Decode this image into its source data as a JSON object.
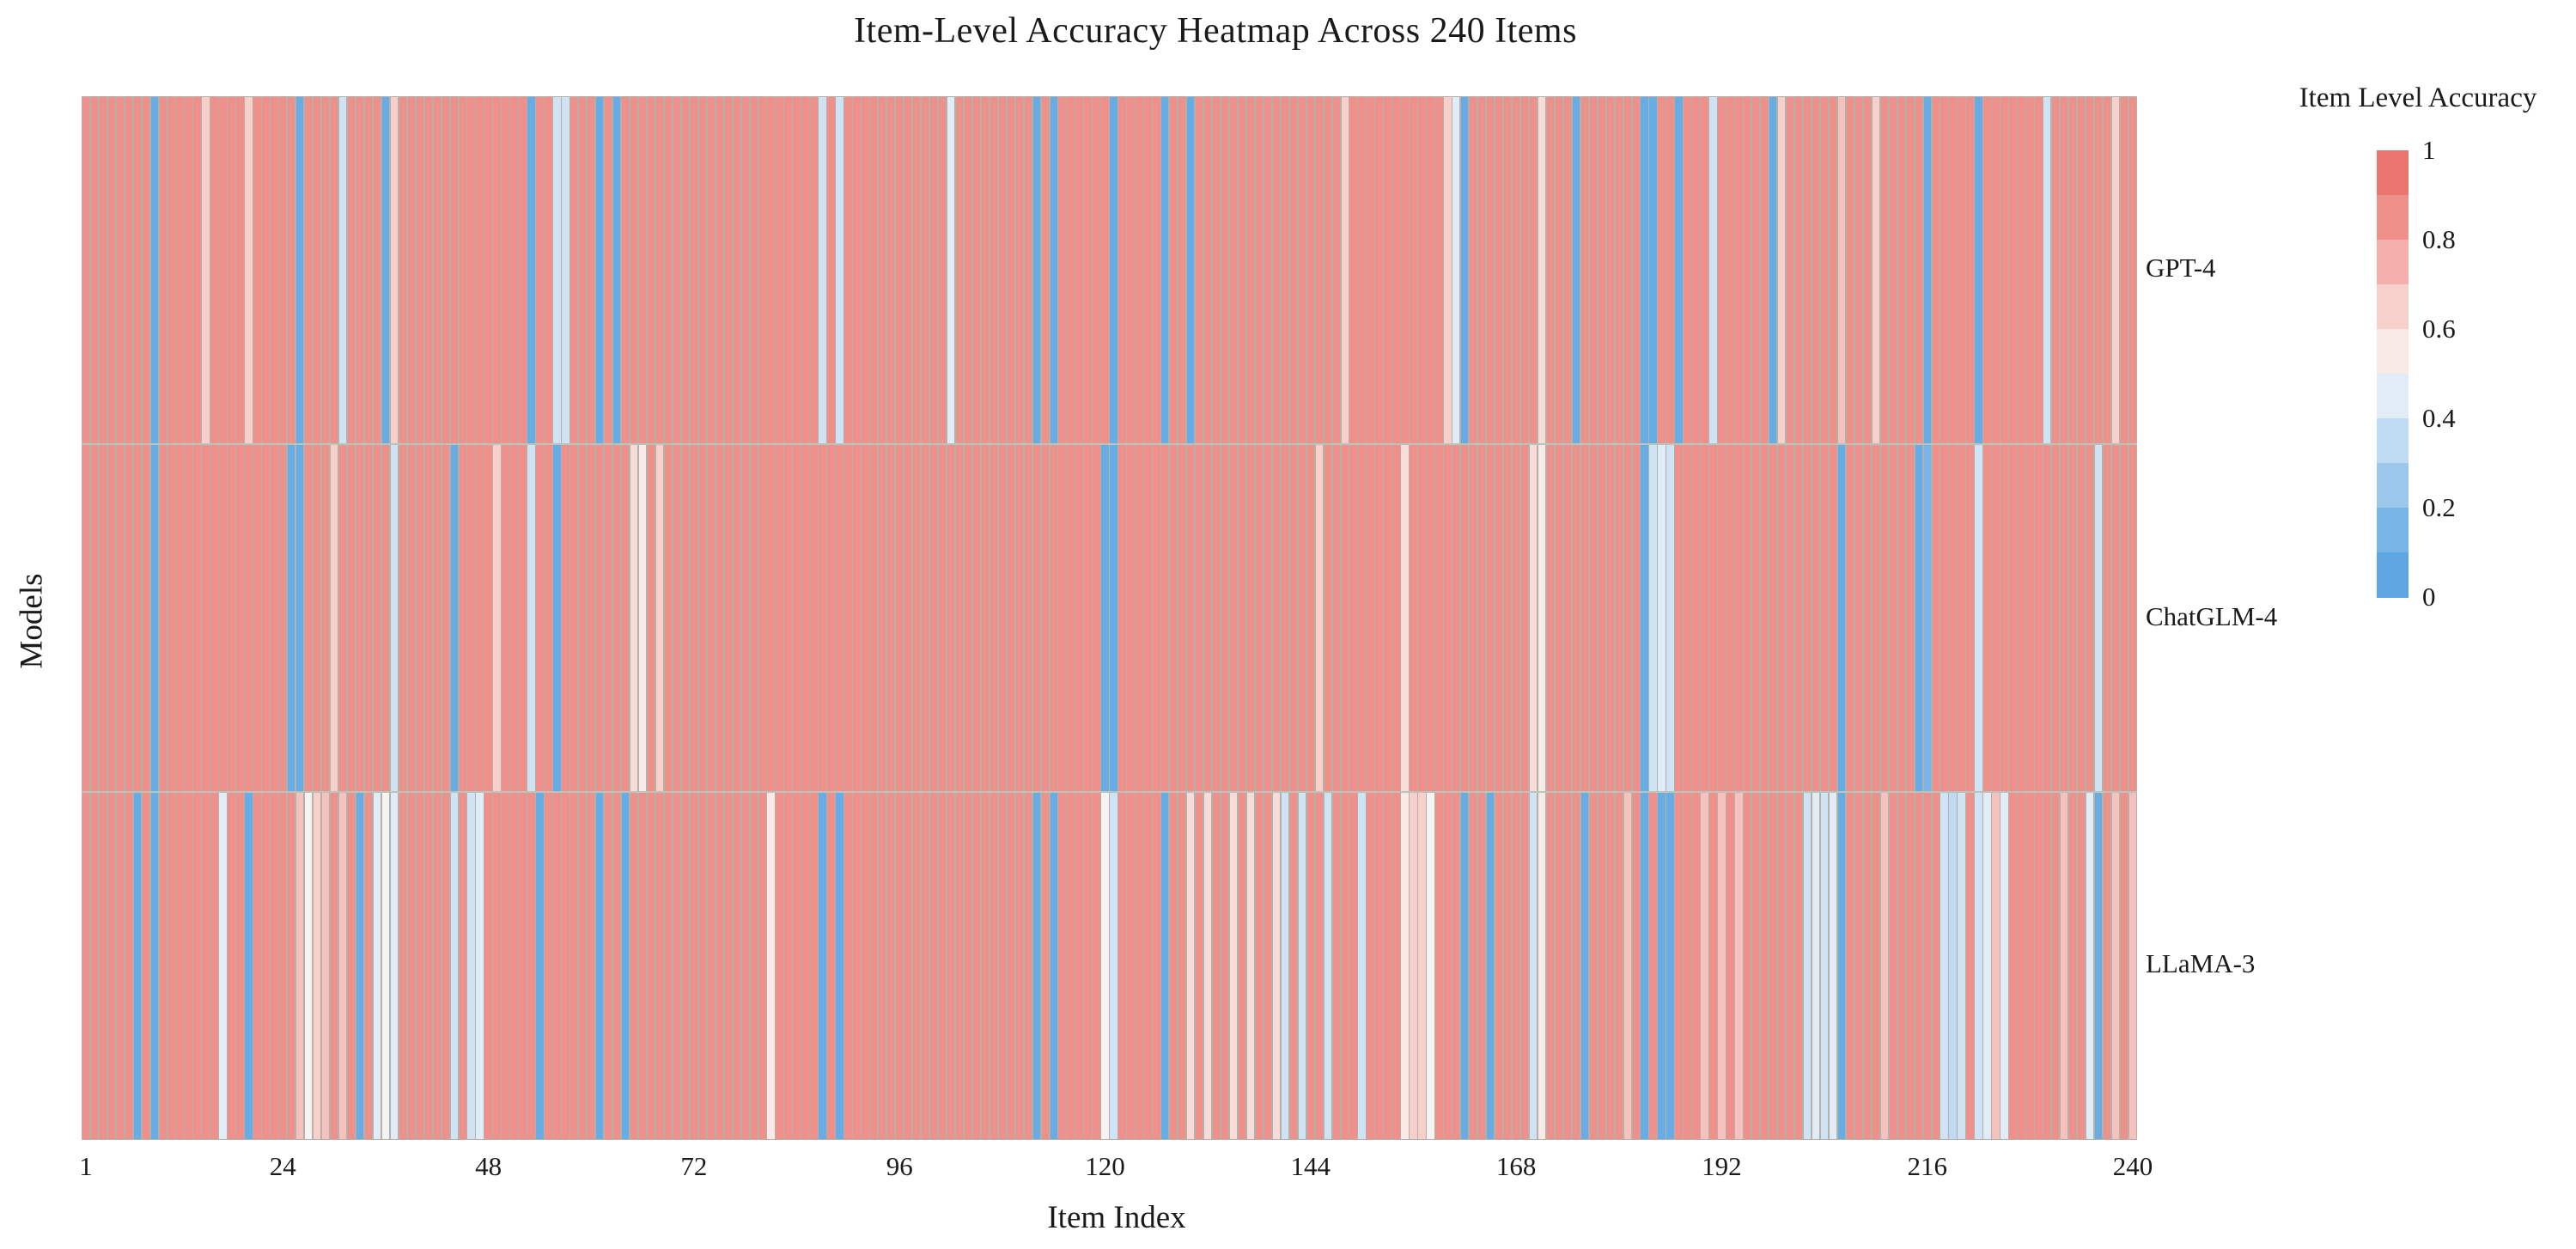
{
  "title": "Item-Level Accuracy Heatmap Across 240 Items",
  "axis": {
    "x_label": "Item Index",
    "y_label": "Models",
    "x_ticks": [
      1,
      24,
      48,
      72,
      96,
      120,
      144,
      168,
      192,
      216,
      240
    ]
  },
  "legend": {
    "title": "Item Level Accuracy",
    "tick_labels": [
      "1",
      "0.8",
      "0.6",
      "0.4",
      "0.2",
      "0"
    ],
    "n_bins": 10
  },
  "colors": {
    "grid_gap": "#b2b2aa",
    "row_separator": "#b9c4ba",
    "colormap_stops": [
      [
        0.0,
        "#54a1e1"
      ],
      [
        0.1,
        "#68ace5"
      ],
      [
        0.2,
        "#8abde9"
      ],
      [
        0.3,
        "#aed2ef"
      ],
      [
        0.4,
        "#cfe3f4"
      ],
      [
        0.47,
        "#e8f0f8"
      ],
      [
        0.5,
        "#f5f4f3"
      ],
      [
        0.55,
        "#f9e9e7"
      ],
      [
        0.6,
        "#f8dcd9"
      ],
      [
        0.7,
        "#f5c2bd"
      ],
      [
        0.8,
        "#f09c97"
      ],
      [
        0.9,
        "#ed837e"
      ],
      [
        1.0,
        "#e5685f"
      ]
    ]
  },
  "chart_data": {
    "type": "heatmap",
    "title": "Item-Level Accuracy Heatmap Across 240 Items",
    "xlabel": "Item Index",
    "ylabel": "Models",
    "x_range": [
      1,
      240
    ],
    "n_items": 240,
    "value_range": [
      0,
      1
    ],
    "colormap": "diverging blue(0) to white(0.5) to red(1)",
    "legend_position": "right",
    "rows": [
      "GPT-4",
      "ChatGLM-4",
      "LLaMA-3"
    ],
    "encoding": "per-series: 240 items, value = base except listed 1-based overrides",
    "series": [
      {
        "name": "GPT-4",
        "base": 0.85,
        "overrides": {
          "9": 0.1,
          "15": 0.65,
          "20": 0.65,
          "26": 0.1,
          "31": 0.4,
          "36": 0.1,
          "37": 0.65,
          "53": 0.1,
          "56": 0.4,
          "57": 0.4,
          "61": 0.1,
          "63": 0.1,
          "87": 0.4,
          "89": 0.4,
          "102": 0.45,
          "112": 0.1,
          "114": 0.1,
          "121": 0.1,
          "127": 0.1,
          "130": 0.1,
          "148": 0.65,
          "160": 0.65,
          "161": 0.45,
          "162": 0.1,
          "171": 0.6,
          "175": 0.1,
          "183": 0.1,
          "184": 0.1,
          "187": 0.1,
          "191": 0.4,
          "198": 0.1,
          "199": 0.65,
          "206": 0.7,
          "210": 0.65,
          "216": 0.1,
          "222": 0.1,
          "230": 0.4,
          "238": 0.65
        }
      },
      {
        "name": "ChatGLM-4",
        "base": 0.85,
        "overrides": {
          "9": 0.1,
          "25": 0.1,
          "26": 0.1,
          "30": 0.65,
          "37": 0.4,
          "44": 0.1,
          "49": 0.65,
          "53": 0.4,
          "56": 0.1,
          "65": 0.6,
          "66": 0.55,
          "68": 0.65,
          "120": 0.1,
          "121": 0.1,
          "145": 0.65,
          "155": 0.6,
          "170": 0.6,
          "171": 0.55,
          "183": 0.1,
          "184": 0.4,
          "185": 0.45,
          "186": 0.4,
          "206": 0.1,
          "215": 0.1,
          "216": 0.15,
          "222": 0.4,
          "236": 0.4
        }
      },
      {
        "name": "LLaMA-3",
        "base": 0.85,
        "overrides": {
          "7": 0.1,
          "9": 0.1,
          "17": 0.45,
          "20": 0.1,
          "26": 0.7,
          "27": 0.5,
          "28": 0.65,
          "29": 0.7,
          "31": 0.7,
          "33": 0.1,
          "35": 0.45,
          "36": 0.5,
          "37": 0.45,
          "44": 0.4,
          "46": 0.4,
          "47": 0.45,
          "54": 0.1,
          "61": 0.1,
          "64": 0.1,
          "81": 0.55,
          "87": 0.1,
          "89": 0.1,
          "112": 0.1,
          "114": 0.1,
          "120": 0.5,
          "121": 0.4,
          "127": 0.1,
          "130": 0.6,
          "132": 0.6,
          "135": 0.6,
          "137": 0.6,
          "140": 0.6,
          "141": 0.4,
          "143": 0.4,
          "146": 0.4,
          "150": 0.4,
          "155": 0.55,
          "156": 0.65,
          "157": 0.65,
          "158": 0.5,
          "162": 0.1,
          "165": 0.1,
          "170": 0.4,
          "171": 0.55,
          "176": 0.1,
          "181": 0.7,
          "183": 0.1,
          "185": 0.1,
          "186": 0.1,
          "190": 0.7,
          "192": 0.7,
          "194": 0.7,
          "202": 0.4,
          "203": 0.45,
          "204": 0.4,
          "205": 0.45,
          "206": 0.1,
          "211": 0.7,
          "218": 0.4,
          "219": 0.35,
          "220": 0.4,
          "222": 0.4,
          "223": 0.45,
          "224": 0.7,
          "225": 0.45,
          "232": 0.7,
          "235": 0.45,
          "236": 0.1,
          "238": 0.7,
          "240": 0.7
        }
      }
    ]
  }
}
